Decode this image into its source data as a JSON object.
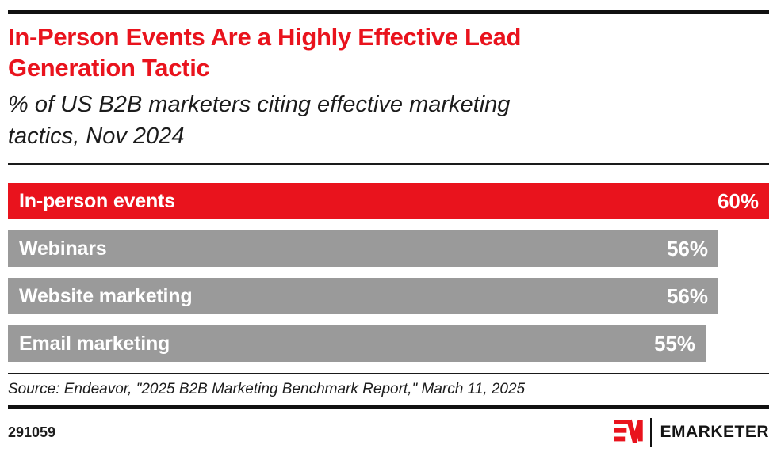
{
  "page": {
    "background": "#ffffff",
    "accent_red": "#e9131d",
    "bar_gray": "#9a9a9a",
    "text_black": "#1c1c1c"
  },
  "header": {
    "title": "In-Person Events Are a Highly Effective Lead Generation Tactic",
    "title_line1": "In-Person Events Are a Highly Effective Lead",
    "title_line2": "Generation Tactic",
    "subtitle": "% of US B2B marketers citing effective marketing tactics, Nov 2024",
    "subtitle_line1": "% of US B2B marketers citing effective marketing",
    "subtitle_line2": "tactics, Nov 2024"
  },
  "chart_data": {
    "type": "bar",
    "orientation": "horizontal",
    "title": "In-Person Events Are a Highly Effective Lead Generation Tactic",
    "subtitle": "% of US B2B marketers citing effective marketing tactics, Nov 2024",
    "categories": [
      "In-person events",
      "Webinars",
      "Website marketing",
      "Email marketing"
    ],
    "values": [
      60,
      56,
      56,
      55
    ],
    "value_labels": [
      "60%",
      "56%",
      "56%",
      "55%"
    ],
    "value_suffix": "%",
    "xlim": [
      0,
      60
    ],
    "bar_colors": [
      "#e9131d",
      "#9a9a9a",
      "#9a9a9a",
      "#9a9a9a"
    ],
    "grid": false,
    "legend": false,
    "value_label_position": "inside-end",
    "category_label_position": "inside-start"
  },
  "footer": {
    "source": "Source: Endeavor, \"2025 B2B Marketing Benchmark Report,\" March 11, 2025",
    "chart_id": "291059",
    "brand": "EMARKETER",
    "logo": "emarketer-em-mark"
  }
}
